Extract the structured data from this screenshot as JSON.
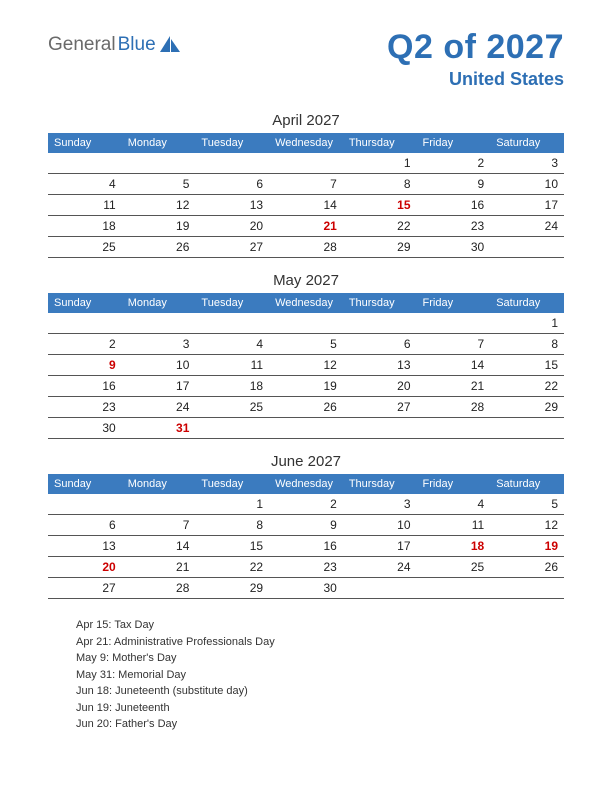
{
  "colors": {
    "header_blue": "#3b7bbf",
    "accent_blue": "#2d6fb4",
    "holiday_red": "#cc0000",
    "row_border": "#555555",
    "logo_gray": "#6a6a6a",
    "text": "#222222",
    "background": "#ffffff"
  },
  "logo": {
    "part1": "General",
    "part2": "Blue"
  },
  "title": {
    "quarter": "Q2 of 2027",
    "country": "United States"
  },
  "day_headers": [
    "Sunday",
    "Monday",
    "Tuesday",
    "Wednesday",
    "Thursday",
    "Friday",
    "Saturday"
  ],
  "months": [
    {
      "name": "April 2027",
      "weeks": [
        [
          "",
          "",
          "",
          "",
          "1",
          "2",
          "3"
        ],
        [
          "4",
          "5",
          "6",
          "7",
          "8",
          "9",
          "10"
        ],
        [
          "11",
          "12",
          "13",
          "14",
          "15",
          "16",
          "17"
        ],
        [
          "18",
          "19",
          "20",
          "21",
          "22",
          "23",
          "24"
        ],
        [
          "25",
          "26",
          "27",
          "28",
          "29",
          "30",
          ""
        ]
      ],
      "holidays": [
        "15",
        "21"
      ]
    },
    {
      "name": "May 2027",
      "weeks": [
        [
          "",
          "",
          "",
          "",
          "",
          "",
          "1"
        ],
        [
          "2",
          "3",
          "4",
          "5",
          "6",
          "7",
          "8"
        ],
        [
          "9",
          "10",
          "11",
          "12",
          "13",
          "14",
          "15"
        ],
        [
          "16",
          "17",
          "18",
          "19",
          "20",
          "21",
          "22"
        ],
        [
          "23",
          "24",
          "25",
          "26",
          "27",
          "28",
          "29"
        ],
        [
          "30",
          "31",
          "",
          "",
          "",
          "",
          ""
        ]
      ],
      "holidays": [
        "9",
        "31"
      ]
    },
    {
      "name": "June 2027",
      "weeks": [
        [
          "",
          "",
          "1",
          "2",
          "3",
          "4",
          "5"
        ],
        [
          "6",
          "7",
          "8",
          "9",
          "10",
          "11",
          "12"
        ],
        [
          "13",
          "14",
          "15",
          "16",
          "17",
          "18",
          "19"
        ],
        [
          "20",
          "21",
          "22",
          "23",
          "24",
          "25",
          "26"
        ],
        [
          "27",
          "28",
          "29",
          "30",
          "",
          "",
          ""
        ]
      ],
      "holidays": [
        "18",
        "19",
        "20"
      ]
    }
  ],
  "holiday_list": [
    "Apr 15: Tax Day",
    "Apr 21: Administrative Professionals Day",
    "May 9: Mother's Day",
    "May 31: Memorial Day",
    "Jun 18: Juneteenth (substitute day)",
    "Jun 19: Juneteenth",
    "Jun 20: Father's Day"
  ],
  "style": {
    "header_fontsize": 11,
    "cell_fontsize": 12,
    "month_fontsize": 15,
    "quarter_fontsize": 34,
    "country_fontsize": 18,
    "holiday_list_fontsize": 11
  }
}
